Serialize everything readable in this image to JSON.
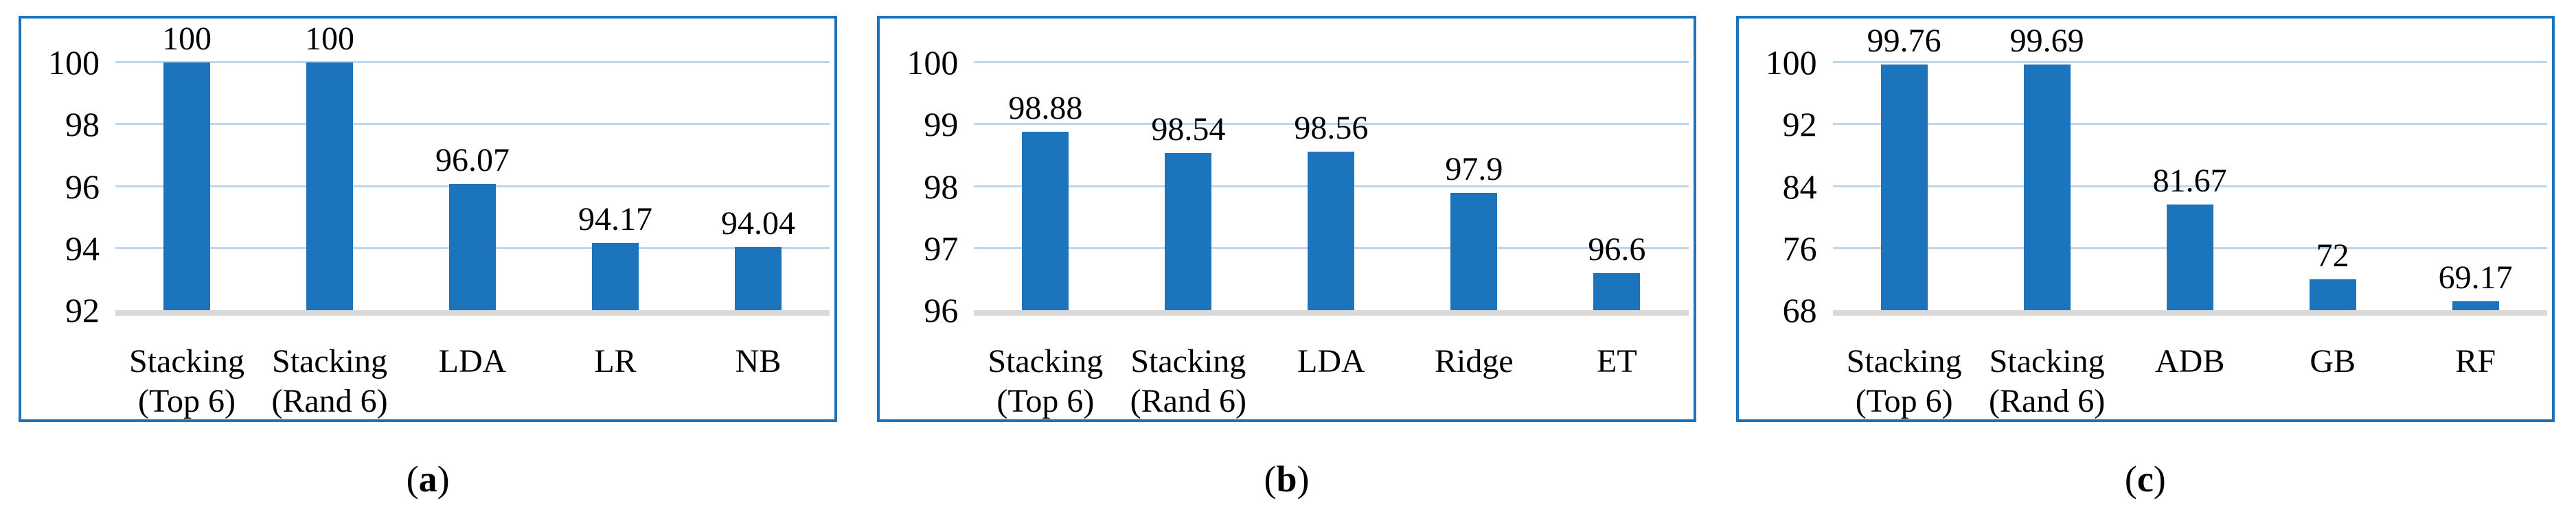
{
  "colors": {
    "bar": "#1C75BC",
    "panel_border": "#1E73BB",
    "gridline": "#BDD7EE",
    "axis_line": "#D9D9D9",
    "text": "#000000"
  },
  "chart_data": [
    {
      "type": "bar",
      "caption": {
        "open": "(",
        "letter": "a",
        "close": ")"
      },
      "categories": [
        "Stacking\n(Top 6)",
        "Stacking\n(Rand 6)",
        "LDA",
        "LR",
        "NB"
      ],
      "values": [
        100,
        100,
        96.07,
        94.17,
        94.04
      ],
      "value_labels": [
        "100",
        "100",
        "96.07",
        "94.17",
        "94.04"
      ],
      "ylim": [
        92,
        100
      ],
      "yticks": [
        100,
        98,
        96,
        94,
        92
      ],
      "xlabel": "",
      "ylabel": "",
      "title": "",
      "grid": true,
      "legend": "none"
    },
    {
      "type": "bar",
      "caption": {
        "open": "(",
        "letter": "b",
        "close": ")"
      },
      "categories": [
        "Stacking\n(Top 6)",
        "Stacking\n(Rand 6)",
        "LDA",
        "Ridge",
        "ET"
      ],
      "values": [
        98.88,
        98.54,
        98.56,
        97.9,
        96.6
      ],
      "value_labels": [
        "98.88",
        "98.54",
        "98.56",
        "97.9",
        "96.6"
      ],
      "ylim": [
        96,
        100
      ],
      "yticks": [
        100,
        99,
        98,
        97,
        96
      ],
      "xlabel": "",
      "ylabel": "",
      "title": "",
      "grid": true,
      "legend": "none"
    },
    {
      "type": "bar",
      "caption": {
        "open": "(",
        "letter": "c",
        "close": ")"
      },
      "categories": [
        "Stacking\n(Top 6)",
        "Stacking\n(Rand 6)",
        "ADB",
        "GB",
        "RF"
      ],
      "values": [
        99.76,
        99.69,
        81.67,
        72,
        69.17
      ],
      "value_labels": [
        "99.76",
        "99.69",
        "81.67",
        "72",
        "69.17"
      ],
      "ylim": [
        68,
        100
      ],
      "yticks": [
        100,
        92,
        84,
        76,
        68
      ],
      "xlabel": "",
      "ylabel": "",
      "title": "",
      "grid": true,
      "legend": "none"
    }
  ]
}
